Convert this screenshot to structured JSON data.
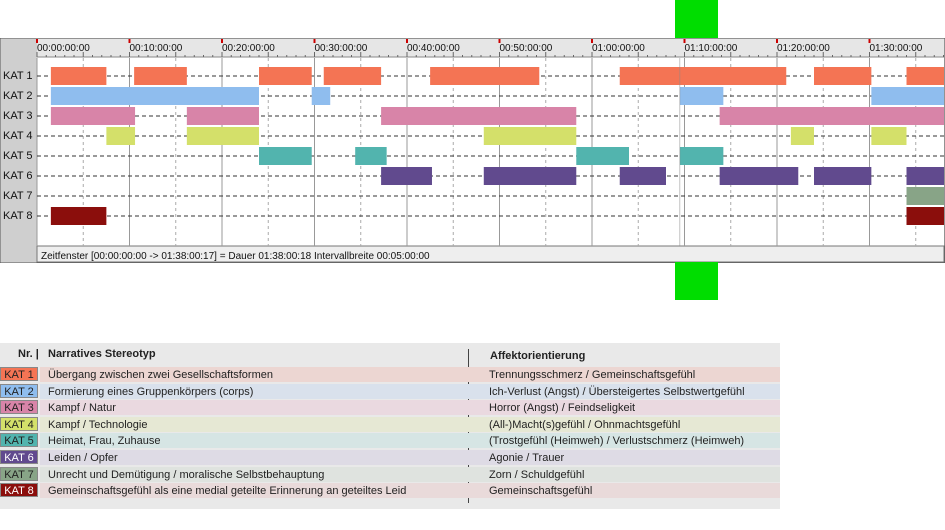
{
  "chart_data": {
    "type": "timeline",
    "x_unit": "hh:mm:ss",
    "x_ticks": [
      "00:00:00:00",
      "00:10:00:00",
      "00:20:00:00",
      "00:30:00:00",
      "00:40:00:00",
      "00:50:00:00",
      "01:00:00:00",
      "01:10:00:00",
      "01:20:00:00",
      "01:30:00:00"
    ],
    "xlim_minutes": [
      0,
      98.3
    ],
    "status_text": "Zeitfenster [00:00:00:00 -> 01:38:00:17] = Dauer 01:38:00:18     Intervallbreite 00:05:00:00",
    "highlight_minutes": [
      69.5,
      74.1
    ],
    "categories": [
      {
        "code": "KAT 1",
        "color": "#f47454",
        "segments": [
          [
            1.5,
            7.5
          ],
          [
            10.5,
            16.2
          ],
          [
            24,
            29.7
          ],
          [
            31,
            37.2
          ],
          [
            42.5,
            54.3
          ],
          [
            63,
            81
          ],
          [
            84,
            90.2
          ],
          [
            94,
            98.3
          ]
        ]
      },
      {
        "code": "KAT 2",
        "color": "#8fbdee",
        "segments": [
          [
            1.5,
            24
          ],
          [
            29.7,
            31.7
          ],
          [
            69.5,
            74.2
          ],
          [
            90.2,
            98.3
          ]
        ]
      },
      {
        "code": "KAT 3",
        "color": "#d884a8",
        "segments": [
          [
            1.5,
            10.6
          ],
          [
            16.2,
            24
          ],
          [
            37.2,
            58.3
          ],
          [
            73.8,
            98.3
          ]
        ]
      },
      {
        "code": "KAT 4",
        "color": "#d4e06a",
        "segments": [
          [
            7.5,
            10.6
          ],
          [
            16.2,
            24
          ],
          [
            48.3,
            58.3
          ],
          [
            81.5,
            84
          ],
          [
            90.2,
            94
          ]
        ]
      },
      {
        "code": "KAT 5",
        "color": "#52b4ae",
        "segments": [
          [
            24,
            29.7
          ],
          [
            34.4,
            37.8
          ],
          [
            58.3,
            64
          ],
          [
            69.5,
            74.2
          ]
        ]
      },
      {
        "code": "KAT 6",
        "color": "#614a8e",
        "segments": [
          [
            37.2,
            42.7
          ],
          [
            48.3,
            58.3
          ],
          [
            63,
            68
          ],
          [
            73.8,
            82.3
          ],
          [
            84,
            90.2
          ],
          [
            94,
            98.3
          ]
        ]
      },
      {
        "code": "KAT 7",
        "color": "#88a487",
        "segments": [
          [
            94,
            98.3
          ]
        ]
      },
      {
        "code": "KAT 8",
        "color": "#8b0e0c",
        "segments": [
          [
            1.5,
            7.5
          ],
          [
            94,
            98.3
          ]
        ]
      }
    ]
  },
  "legend": {
    "col_nr": "Nr. |",
    "col_stereotype": "Narratives Stereotyp",
    "col_affect": "Affektorientierung",
    "rows": [
      {
        "code": "KAT 1",
        "color": "#f47454",
        "band": "#ecd6d2",
        "stereotype": "Übergang zwischen zwei Gesellschaftsformen",
        "affect": "Trennungsschmerz / Gemeinschaftsgefühl"
      },
      {
        "code": "KAT 2",
        "color": "#8fbdee",
        "band": "#d9e1ec",
        "stereotype": "Formierung eines Gruppenkörpers (corps)",
        "affect": "Ich-Verlust (Angst) / Übersteigertes Selbstwertgefühl"
      },
      {
        "code": "KAT 3",
        "color": "#d884a8",
        "band": "#ead9e0",
        "stereotype": "Kampf / Natur",
        "affect": "Horror (Angst) / Feindseligkeit"
      },
      {
        "code": "KAT 4",
        "color": "#d4e06a",
        "band": "#e6e8d4",
        "stereotype": "Kampf / Technologie",
        "affect": "(All-)Macht(s)gefühl / Ohnmachtsgefühl"
      },
      {
        "code": "KAT 5",
        "color": "#52b4ae",
        "band": "#d6e5e4",
        "stereotype": "Heimat, Frau, Zuhause",
        "affect": "(Trostgefühl (Heimweh) / Verlustschmerz (Heimweh)"
      },
      {
        "code": "KAT 6",
        "color": "#614a8e",
        "band": "#dedbe5",
        "stereotype": "Leiden / Opfer",
        "affect": "Agonie / Trauer"
      },
      {
        "code": "KAT 7",
        "color": "#88a487",
        "band": "#dfe3df",
        "stereotype": "Unrecht und Demütigung / moralische Selbstbehauptung",
        "affect": "Zorn / Schuldgefühl"
      },
      {
        "code": "KAT 8",
        "color": "#8b0e0c",
        "band": "#e9dada",
        "stereotype": "Gemeinschaftsgefühl als eine medial geteilte Erinnerung an geteiltes Leid",
        "affect": "Gemeinschaftsgefühl"
      }
    ]
  }
}
